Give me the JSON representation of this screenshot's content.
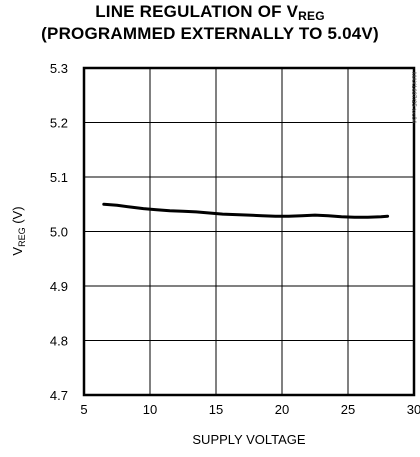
{
  "chart_data": {
    "type": "line",
    "title_line1_pre": "LINE REGULATION OF V",
    "title_line1_sub": "REG",
    "title_line2": "(PROGRAMMED EXTERNALLY TO 5.04V)",
    "xlabel": "SUPPLY VOLTAGE",
    "ylabel_pre": "V",
    "ylabel_sub": "REG",
    "ylabel_post": " (V)",
    "watermark": "MAX1697/25 toc04",
    "xlim": [
      5,
      30
    ],
    "ylim": [
      4.7,
      5.3
    ],
    "xticks": [
      5,
      10,
      15,
      20,
      25,
      30
    ],
    "yticks": [
      4.7,
      4.8,
      4.9,
      5.0,
      5.1,
      5.2,
      5.3
    ],
    "xtick_labels": [
      "5",
      "10",
      "15",
      "20",
      "25",
      "30"
    ],
    "ytick_labels": [
      "4.7",
      "4.8",
      "4.9",
      "5.0",
      "5.1",
      "5.2",
      "5.3"
    ],
    "grid": true,
    "series": [
      {
        "x": [
          6.5,
          7.5,
          8.5,
          9.5,
          10.5,
          11.5,
          12.5,
          13.5,
          14.5,
          15.5,
          16.5,
          17.5,
          18.5,
          19.5,
          20.5,
          21.5,
          22.5,
          23.5,
          24.5,
          25.5,
          26.5,
          27.5,
          28.0
        ],
        "y": [
          5.05,
          5.048,
          5.045,
          5.042,
          5.04,
          5.038,
          5.037,
          5.036,
          5.034,
          5.032,
          5.031,
          5.03,
          5.029,
          5.028,
          5.028,
          5.029,
          5.03,
          5.029,
          5.027,
          5.026,
          5.026,
          5.027,
          5.028
        ]
      }
    ]
  }
}
